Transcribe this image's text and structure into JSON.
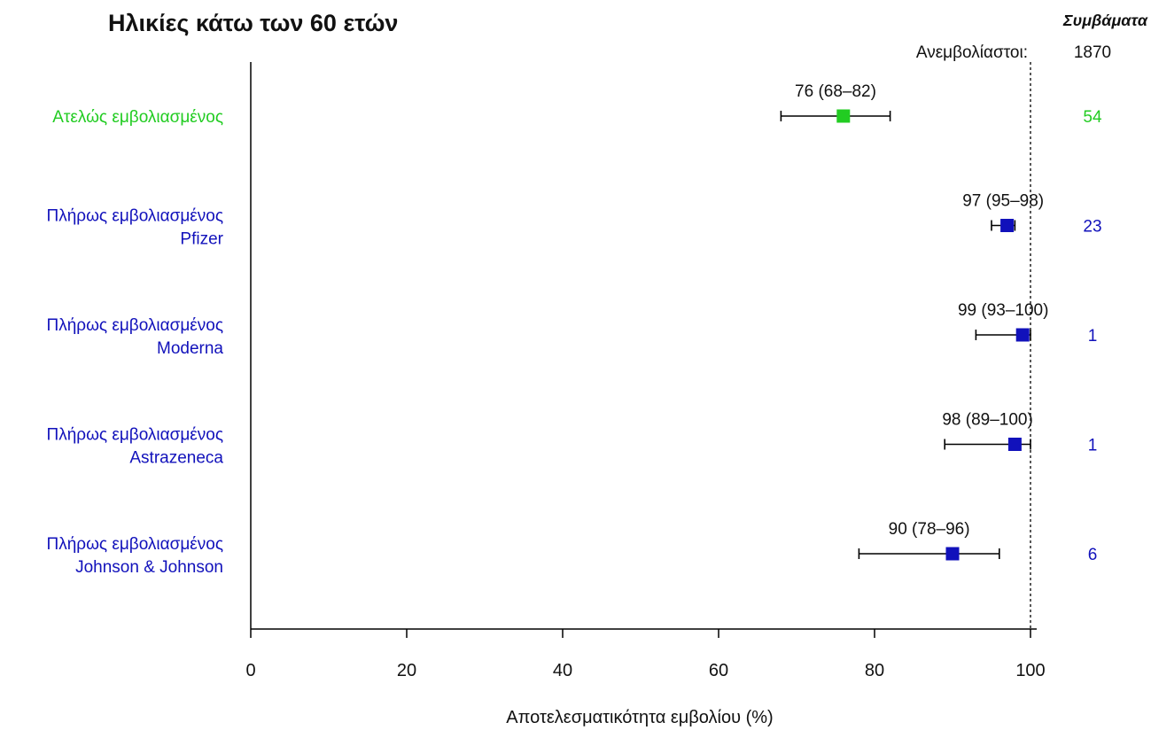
{
  "chart_data": {
    "type": "forest",
    "title": "Ηλικίες κάτω των 60 ετών",
    "xlabel": "Αποτελεσματικότητα εμβολίου (%)",
    "xlim": [
      0,
      104
    ],
    "xticks": [
      0,
      20,
      40,
      60,
      80,
      100
    ],
    "reference_line": 100,
    "events_header": "Συμβάματα",
    "unvaccinated_label": "Ανεμβολίαστοι:",
    "unvaccinated_events": "1870",
    "rows": [
      {
        "label_line1": "Ατελώς εμβολιασμένος",
        "label_line2": "",
        "estimate": 76,
        "lower": 68,
        "upper": 82,
        "ci_text": "76 (68–82)",
        "events": "54",
        "color": "#22cc22"
      },
      {
        "label_line1": "Πλήρως εμβολιασμένος",
        "label_line2": "Pfizer",
        "estimate": 97,
        "lower": 95,
        "upper": 98,
        "ci_text": "97 (95–98)",
        "events": "23",
        "color": "#1111bb"
      },
      {
        "label_line1": "Πλήρως εμβολιασμένος",
        "label_line2": "Moderna",
        "estimate": 99,
        "lower": 93,
        "upper": 100,
        "ci_text": "99 (93–100)",
        "events": "1",
        "color": "#1111bb"
      },
      {
        "label_line1": "Πλήρως εμβολιασμένος",
        "label_line2": "Astrazeneca",
        "estimate": 98,
        "lower": 89,
        "upper": 100,
        "ci_text": "98 (89–100)",
        "events": "1",
        "color": "#1111bb"
      },
      {
        "label_line1": "Πλήρως εμβολιασμένος",
        "label_line2": "Johnson & Johnson",
        "estimate": 90,
        "lower": 78,
        "upper": 96,
        "ci_text": "90 (78–96)",
        "events": "6",
        "color": "#1111bb"
      }
    ]
  }
}
